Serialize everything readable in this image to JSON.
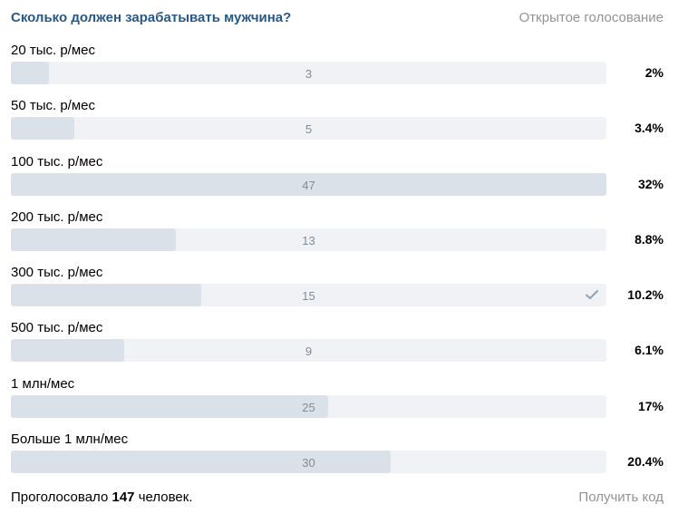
{
  "poll": {
    "question": "Сколько должен зарабатывать мужчина?",
    "vote_type": "Открытое голосование",
    "answers": [
      {
        "label": "20 тыс. р/мес",
        "count": "3",
        "percent": "2%",
        "fill_fraction": 0.064,
        "selected": false
      },
      {
        "label": "50 тыс. р/мес",
        "count": "5",
        "percent": "3.4%",
        "fill_fraction": 0.106,
        "selected": false
      },
      {
        "label": "100 тыс. р/мес",
        "count": "47",
        "percent": "32%",
        "fill_fraction": 1.0,
        "selected": false
      },
      {
        "label": "200 тыс. р/мес",
        "count": "13",
        "percent": "8.8%",
        "fill_fraction": 0.277,
        "selected": false
      },
      {
        "label": "300 тыс. р/мес",
        "count": "15",
        "percent": "10.2%",
        "fill_fraction": 0.319,
        "selected": true
      },
      {
        "label": "500 тыс. р/мес",
        "count": "9",
        "percent": "6.1%",
        "fill_fraction": 0.191,
        "selected": false
      },
      {
        "label": "1 млн/мес",
        "count": "25",
        "percent": "17%",
        "fill_fraction": 0.532,
        "selected": false
      },
      {
        "label": "Больше 1 млн/мес",
        "count": "30",
        "percent": "20.4%",
        "fill_fraction": 0.638,
        "selected": false
      }
    ],
    "footer": {
      "total_prefix": "Проголосовало",
      "total_count": "147",
      "total_suffix": "человек.",
      "get_code": "Получить код"
    }
  },
  "colors": {
    "question": "#2a5885",
    "muted": "#939393",
    "bar_bg": "#f0f2f5",
    "bar_fill": "#dae1e8",
    "count_text": "#818c99",
    "check": "#8fa1b3"
  },
  "icons": {
    "selected_mark": "check-icon"
  }
}
